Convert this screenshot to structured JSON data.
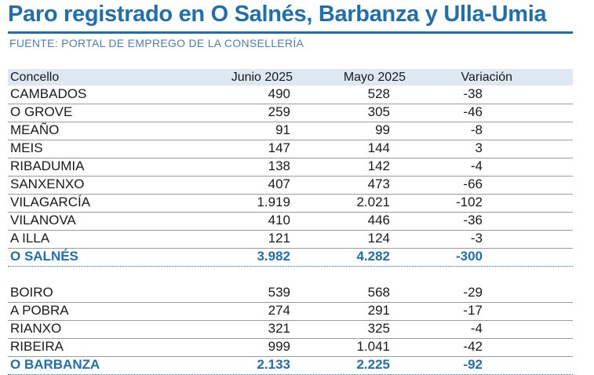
{
  "title": "Paro registrado en O Salnés, Barbanza y Ulla-Umia",
  "source": "FUENTE: PORTAL DE EMPREGO DE LA CONSELLERÍA",
  "columns": [
    "Concello",
    "Junio 2025",
    "Mayo 2025",
    "Variación"
  ],
  "salnes": [
    {
      "concello": "CAMBADOS",
      "junio": "490",
      "mayo": "528",
      "variacion": "-38"
    },
    {
      "concello": "O GROVE",
      "junio": "259",
      "mayo": "305",
      "variacion": "-46"
    },
    {
      "concello": "MEAÑO",
      "junio": "91",
      "mayo": "99",
      "variacion": "-8"
    },
    {
      "concello": "MEIS",
      "junio": "147",
      "mayo": "144",
      "variacion": "3"
    },
    {
      "concello": "RIBADUMIA",
      "junio": "138",
      "mayo": "142",
      "variacion": "-4"
    },
    {
      "concello": "SANXENXO",
      "junio": "407",
      "mayo": "473",
      "variacion": "-66"
    },
    {
      "concello": "VILAGARCÍA",
      "junio": "1.919",
      "mayo": "2.021",
      "variacion": "-102"
    },
    {
      "concello": "VILANOVA",
      "junio": "410",
      "mayo": "446",
      "variacion": "-36"
    },
    {
      "concello": "A ILLA",
      "junio": "121",
      "mayo": "124",
      "variacion": "-3"
    }
  ],
  "salnes_total": {
    "concello": "O SALNÉS",
    "junio": "3.982",
    "mayo": "4.282",
    "variacion": "-300"
  },
  "barbanza": [
    {
      "concello": "BOIRO",
      "junio": "539",
      "mayo": "568",
      "variacion": "-29"
    },
    {
      "concello": "A POBRA",
      "junio": "274",
      "mayo": "291",
      "variacion": "-17"
    },
    {
      "concello": "RIANXO",
      "junio": "321",
      "mayo": "325",
      "variacion": "-4"
    },
    {
      "concello": "RIBEIRA",
      "junio": "999",
      "mayo": "1.041",
      "variacion": "-42"
    }
  ],
  "barbanza_total": {
    "concello": "O BARBANZA",
    "junio": "2.133",
    "mayo": "2.225",
    "variacion": "-92"
  },
  "colors": {
    "accent": "#1f6fb0",
    "header_bg": "#dde8f3"
  }
}
